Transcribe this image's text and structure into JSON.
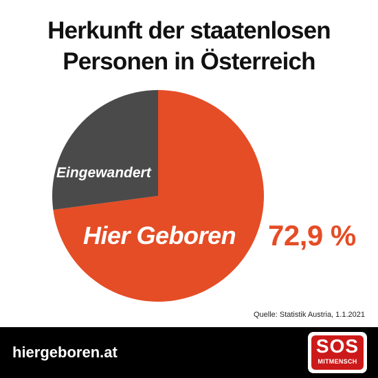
{
  "chart_data": {
    "type": "pie",
    "title": [
      "Herkunft der staatenlosen",
      "Personen in Österreich"
    ],
    "slices": [
      {
        "label": "Hier Geboren",
        "value": 72.9,
        "value_label": "72,9 %",
        "color": "#e54d26"
      },
      {
        "label": "Eingewandert",
        "value": 27.1,
        "color": "#4a4a4a"
      }
    ],
    "source": "Quelle: Statistik Austria, 1.1.2021"
  },
  "footer": {
    "website": "hiergeboren.at",
    "logo_text": "SOS",
    "logo_subtext": "MITMENSCH"
  },
  "colors": {
    "background": "#ffffff",
    "accent": "#e54d26",
    "slice_dark": "#4a4a4a",
    "footer": "#000000",
    "logo": "#cc1a1a"
  }
}
